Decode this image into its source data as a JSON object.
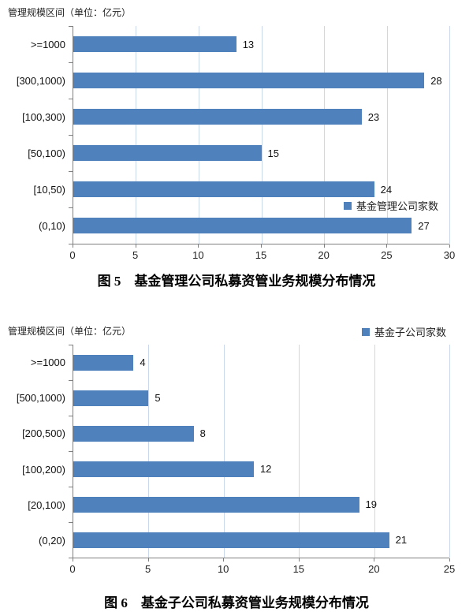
{
  "colors": {
    "bar": "#4F81BD",
    "gridline": "#CBD8EB",
    "axis": "#7F7F7F",
    "text": "#1A1A1A"
  },
  "chart_data": [
    {
      "type": "bar",
      "orientation": "horizontal",
      "unit_label": "管理规模区间（单位：亿元）",
      "legend": "基金管理公司家数",
      "legend_position": "inside lower right",
      "caption": "图 5　基金管理公司私募资管业务规模分布情况",
      "categories": [
        ">=1000",
        "[300,1000)",
        "[100,300)",
        "[50,100)",
        "[10,50)",
        "(0,10)"
      ],
      "values": [
        13,
        28,
        23,
        15,
        24,
        27
      ],
      "xlim": [
        0,
        30
      ],
      "xticks": [
        0,
        5,
        10,
        15,
        20,
        25,
        30
      ],
      "grid": true
    },
    {
      "type": "bar",
      "orientation": "horizontal",
      "unit_label": "管理规模区间（单位：亿元）",
      "legend": "基金子公司家数",
      "legend_position": "top right",
      "caption": "图 6　基金子公司私募资管业务规模分布情况",
      "categories": [
        ">=1000",
        "[500,1000)",
        "[200,500)",
        "[100,200)",
        "[20,100)",
        "(0,20)"
      ],
      "values": [
        4,
        5,
        8,
        12,
        19,
        21
      ],
      "xlim": [
        0,
        25
      ],
      "xticks": [
        0,
        5,
        10,
        15,
        20,
        25
      ],
      "grid": true
    }
  ]
}
